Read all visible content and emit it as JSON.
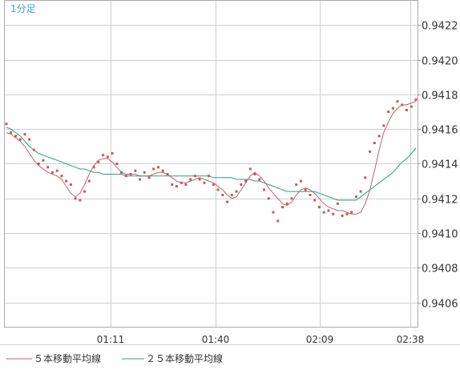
{
  "timeframe_label": "1分足",
  "colors": {
    "ma5": "#c06070",
    "ma25": "#2aa07a",
    "dots": "#c55a5a",
    "grid": "#cfcfcf",
    "frame": "#aaaaaa"
  },
  "chart_data": {
    "type": "line",
    "x_ticks": [
      "01:11",
      "01:40",
      "02:09",
      "02:38"
    ],
    "y_ticks": [
      "0.9406",
      "0.9408",
      "0.9410",
      "0.9412",
      "0.9414",
      "0.9416",
      "0.9418",
      "0.9420",
      "0.9422"
    ],
    "ylim": [
      0.94046,
      0.94234
    ],
    "grid": true,
    "legend": "bottom",
    "series": [
      {
        "name": "５本移動平均線",
        "kind": "line",
        "color": "#c06070",
        "values": [
          0.94158,
          0.94157,
          0.94155,
          0.94153,
          0.9415,
          0.94146,
          0.94142,
          0.94139,
          0.94137,
          0.94135,
          0.94134,
          0.94133,
          0.94131,
          0.94127,
          0.94123,
          0.94121,
          0.94123,
          0.94128,
          0.94134,
          0.94139,
          0.94142,
          0.94143,
          0.94143,
          0.94141,
          0.94138,
          0.94135,
          0.94134,
          0.94134,
          0.94134,
          0.94133,
          0.94133,
          0.94133,
          0.94134,
          0.94135,
          0.94135,
          0.94134,
          0.94132,
          0.9413,
          0.94129,
          0.94129,
          0.9413,
          0.94131,
          0.94132,
          0.94131,
          0.9413,
          0.94129,
          0.94127,
          0.94125,
          0.94122,
          0.9412,
          0.94121,
          0.94125,
          0.94129,
          0.94133,
          0.94135,
          0.94133,
          0.9413,
          0.94126,
          0.94123,
          0.9412,
          0.94117,
          0.94116,
          0.94118,
          0.94122,
          0.94125,
          0.94126,
          0.94125,
          0.94123,
          0.9412,
          0.94117,
          0.94115,
          0.94114,
          0.94113,
          0.94113,
          0.94112,
          0.94111,
          0.94111,
          0.94112,
          0.94117,
          0.94125,
          0.94136,
          0.94148,
          0.94158,
          0.94164,
          0.94169,
          0.94172,
          0.94174,
          0.94174,
          0.94175,
          0.94176
        ]
      },
      {
        "name": "２５本移動平均線",
        "kind": "line",
        "color": "#2aa07a",
        "values": [
          0.94161,
          0.9416,
          0.94158,
          0.94156,
          0.94153,
          0.9415,
          0.94148,
          0.94146,
          0.94145,
          0.94144,
          0.94143,
          0.94142,
          0.94141,
          0.9414,
          0.94139,
          0.94138,
          0.94137,
          0.94137,
          0.94136,
          0.94135,
          0.94135,
          0.94134,
          0.94134,
          0.94134,
          0.94134,
          0.94134,
          0.94133,
          0.94133,
          0.94133,
          0.94133,
          0.94133,
          0.94133,
          0.94133,
          0.94133,
          0.94133,
          0.94133,
          0.94133,
          0.94133,
          0.94133,
          0.94133,
          0.94133,
          0.94133,
          0.94133,
          0.94133,
          0.94133,
          0.94132,
          0.94132,
          0.94132,
          0.94132,
          0.94132,
          0.94131,
          0.94131,
          0.94131,
          0.94131,
          0.9413,
          0.9413,
          0.94129,
          0.94128,
          0.94127,
          0.94126,
          0.94125,
          0.94124,
          0.94124,
          0.94124,
          0.94124,
          0.94124,
          0.94124,
          0.94124,
          0.94123,
          0.94122,
          0.94121,
          0.9412,
          0.94119,
          0.94119,
          0.94119,
          0.94119,
          0.94119,
          0.94121,
          0.94123,
          0.94125,
          0.94127,
          0.94129,
          0.94131,
          0.94133,
          0.94135,
          0.94138,
          0.94141,
          0.94143,
          0.94146,
          0.94149
        ]
      },
      {
        "name": "",
        "kind": "dots",
        "color": "#c55a5a",
        "values": [
          0.94163,
          0.94158,
          0.94156,
          0.94154,
          0.94157,
          0.94154,
          0.94148,
          0.9414,
          0.94142,
          0.94138,
          0.94135,
          0.94136,
          0.94133,
          0.9413,
          0.94128,
          0.9412,
          0.94119,
          0.94124,
          0.9413,
          0.94138,
          0.94141,
          0.94145,
          0.94144,
          0.94146,
          0.9414,
          0.94135,
          0.94133,
          0.94134,
          0.94136,
          0.94131,
          0.94135,
          0.94132,
          0.94137,
          0.94138,
          0.94136,
          0.94134,
          0.94128,
          0.94127,
          0.94129,
          0.94128,
          0.94131,
          0.94133,
          0.94131,
          0.94129,
          0.94133,
          0.94128,
          0.94125,
          0.94122,
          0.94118,
          0.94122,
          0.94124,
          0.94128,
          0.9413,
          0.94137,
          0.94134,
          0.94131,
          0.94125,
          0.9412,
          0.94112,
          0.94107,
          0.94115,
          0.94117,
          0.9412,
          0.94128,
          0.9413,
          0.94125,
          0.94122,
          0.94119,
          0.94115,
          0.94112,
          0.94113,
          0.94111,
          0.94117,
          0.9411,
          0.94111,
          0.94112,
          0.94121,
          0.94124,
          0.94132,
          0.94147,
          0.94152,
          0.94156,
          0.94162,
          0.9417,
          0.94172,
          0.94176,
          0.94174,
          0.94171,
          0.94173,
          0.94177
        ]
      }
    ]
  }
}
